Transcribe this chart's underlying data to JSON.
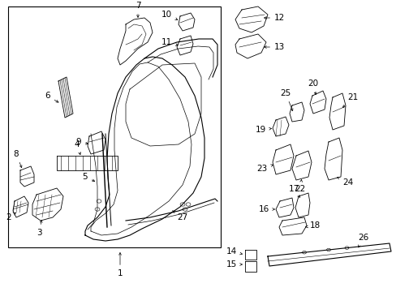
{
  "background_color": "#ffffff",
  "text_color": "#000000",
  "fig_width": 4.89,
  "fig_height": 3.6,
  "dpi": 100,
  "label_fontsize": 7.5
}
